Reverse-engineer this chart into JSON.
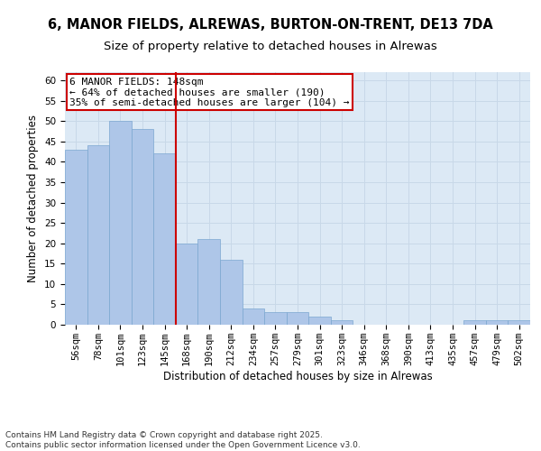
{
  "title": "6, MANOR FIELDS, ALREWAS, BURTON-ON-TRENT, DE13 7DA",
  "subtitle": "Size of property relative to detached houses in Alrewas",
  "xlabel": "Distribution of detached houses by size in Alrewas",
  "ylabel": "Number of detached properties",
  "categories": [
    "56sqm",
    "78sqm",
    "101sqm",
    "123sqm",
    "145sqm",
    "168sqm",
    "190sqm",
    "212sqm",
    "234sqm",
    "257sqm",
    "279sqm",
    "301sqm",
    "323sqm",
    "346sqm",
    "368sqm",
    "390sqm",
    "413sqm",
    "435sqm",
    "457sqm",
    "479sqm",
    "502sqm"
  ],
  "values": [
    43,
    44,
    50,
    48,
    42,
    20,
    21,
    16,
    4,
    3,
    3,
    2,
    1,
    0,
    0,
    0,
    0,
    0,
    1,
    1,
    1
  ],
  "bar_color": "#aec6e8",
  "bar_edge_color": "#7ba7d0",
  "vline_x": 4.5,
  "vline_color": "#cc0000",
  "annotation_text": "6 MANOR FIELDS: 148sqm\n← 64% of detached houses are smaller (190)\n35% of semi-detached houses are larger (104) →",
  "annotation_box_color": "#ffffff",
  "annotation_box_edge": "#cc0000",
  "ylim": [
    0,
    62
  ],
  "yticks": [
    0,
    5,
    10,
    15,
    20,
    25,
    30,
    35,
    40,
    45,
    50,
    55,
    60
  ],
  "grid_color": "#c8d8e8",
  "bg_color": "#dce9f5",
  "footnote": "Contains HM Land Registry data © Crown copyright and database right 2025.\nContains public sector information licensed under the Open Government Licence v3.0.",
  "title_fontsize": 10.5,
  "subtitle_fontsize": 9.5,
  "axis_label_fontsize": 8.5,
  "tick_fontsize": 7.5,
  "annotation_fontsize": 8,
  "footnote_fontsize": 6.5
}
